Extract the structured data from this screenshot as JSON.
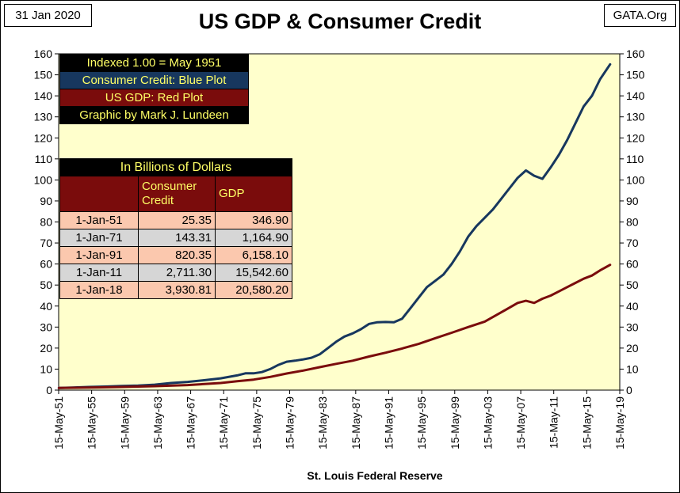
{
  "header": {
    "date_label": "31 Jan 2020",
    "source_label": "GATA.Org",
    "title": "US GDP & Consumer Credit"
  },
  "legend": {
    "lines": [
      {
        "text": "Indexed 1.00 = May 1951",
        "bg": "#000000"
      },
      {
        "text": "Consumer Credit: Blue Plot",
        "bg": "#17375e"
      },
      {
        "text": "US GDP: Red Plot",
        "bg": "#7a0c0c"
      },
      {
        "text": "Graphic by Mark J. Lundeen",
        "bg": "#000000"
      }
    ]
  },
  "table": {
    "caption": "In Billions of Dollars",
    "col_consumer_credit": "Consumer Credit",
    "col_gdp": "GDP",
    "rows": [
      {
        "date": "1-Jan-51",
        "consumer_credit": "25.35",
        "gdp": "346.90"
      },
      {
        "date": "1-Jan-71",
        "consumer_credit": "143.31",
        "gdp": "1,164.90"
      },
      {
        "date": "1-Jan-91",
        "consumer_credit": "820.35",
        "gdp": "6,158.10"
      },
      {
        "date": "1-Jan-11",
        "consumer_credit": "2,711.30",
        "gdp": "15,542.60"
      },
      {
        "date": "1-Jan-18",
        "consumer_credit": "3,930.81",
        "gdp": "20,580.20"
      }
    ]
  },
  "footer": {
    "source": "St. Louis Federal Reserve"
  },
  "colors": {
    "plot_background": "#ffffcc",
    "consumer_credit_line": "#17375e",
    "gdp_line": "#7a0c0c"
  },
  "chart_data": {
    "type": "line",
    "ylim": [
      0,
      160
    ],
    "y_ticks": [
      0,
      10,
      20,
      30,
      40,
      50,
      60,
      70,
      80,
      90,
      100,
      110,
      120,
      130,
      140,
      150,
      160
    ],
    "x_ticks": [
      "15-May-51",
      "15-May-55",
      "15-May-59",
      "15-May-63",
      "15-May-67",
      "15-May-71",
      "15-May-75",
      "15-May-79",
      "15-May-83",
      "15-May-87",
      "15-May-91",
      "15-May-95",
      "15-May-99",
      "15-May-03",
      "15-May-07",
      "15-May-11",
      "15-May-15",
      "15-May-19"
    ],
    "xlim": [
      1951.37,
      2019.37
    ],
    "grid": false,
    "series": [
      {
        "name": "Consumer Credit",
        "color": "#17375e",
        "points": [
          [
            1951.4,
            1.0
          ],
          [
            1953,
            1.2
          ],
          [
            1955,
            1.5
          ],
          [
            1957,
            1.7
          ],
          [
            1959,
            2.0
          ],
          [
            1961,
            2.2
          ],
          [
            1963,
            2.6
          ],
          [
            1965,
            3.4
          ],
          [
            1967,
            3.9
          ],
          [
            1969,
            4.7
          ],
          [
            1971,
            5.6
          ],
          [
            1973,
            7.0
          ],
          [
            1974,
            8.0
          ],
          [
            1975,
            8.0
          ],
          [
            1976,
            8.6
          ],
          [
            1977,
            10.0
          ],
          [
            1978,
            12.0
          ],
          [
            1979,
            13.5
          ],
          [
            1980,
            14.0
          ],
          [
            1981,
            14.6
          ],
          [
            1982,
            15.4
          ],
          [
            1983,
            17.0
          ],
          [
            1984,
            20.0
          ],
          [
            1985,
            23.0
          ],
          [
            1986,
            25.5
          ],
          [
            1987,
            27.0
          ],
          [
            1988,
            29.0
          ],
          [
            1989,
            31.5
          ],
          [
            1990,
            32.3
          ],
          [
            1991,
            32.4
          ],
          [
            1992,
            32.3
          ],
          [
            1993,
            34.0
          ],
          [
            1994,
            39.0
          ],
          [
            1995,
            44.0
          ],
          [
            1996,
            49.0
          ],
          [
            1997,
            52.0
          ],
          [
            1998,
            55.0
          ],
          [
            1999,
            60.0
          ],
          [
            2000,
            66.0
          ],
          [
            2001,
            73.0
          ],
          [
            2002,
            78.0
          ],
          [
            2003,
            82.0
          ],
          [
            2004,
            86.0
          ],
          [
            2005,
            91.0
          ],
          [
            2006,
            96.0
          ],
          [
            2007,
            101.0
          ],
          [
            2008,
            104.5
          ],
          [
            2009,
            102.0
          ],
          [
            2010,
            100.5
          ],
          [
            2011,
            106.0
          ],
          [
            2012,
            112.0
          ],
          [
            2013,
            119.0
          ],
          [
            2014,
            127.0
          ],
          [
            2015,
            135.0
          ],
          [
            2016,
            140.0
          ],
          [
            2017,
            148.0
          ],
          [
            2018.2,
            155.0
          ]
        ]
      },
      {
        "name": "US GDP",
        "color": "#7a0c0c",
        "points": [
          [
            1951.4,
            1.0
          ],
          [
            1955,
            1.2
          ],
          [
            1959,
            1.5
          ],
          [
            1963,
            1.9
          ],
          [
            1967,
            2.4
          ],
          [
            1971,
            3.4
          ],
          [
            1973,
            4.2
          ],
          [
            1975,
            5.0
          ],
          [
            1977,
            6.3
          ],
          [
            1979,
            7.9
          ],
          [
            1981,
            9.3
          ],
          [
            1983,
            10.9
          ],
          [
            1985,
            12.5
          ],
          [
            1987,
            14.0
          ],
          [
            1989,
            16.0
          ],
          [
            1991,
            17.8
          ],
          [
            1993,
            19.8
          ],
          [
            1995,
            22.0
          ],
          [
            1997,
            24.7
          ],
          [
            1999,
            27.3
          ],
          [
            2001,
            30.0
          ],
          [
            2003,
            32.6
          ],
          [
            2005,
            37.0
          ],
          [
            2007,
            41.5
          ],
          [
            2008,
            42.5
          ],
          [
            2009,
            41.5
          ],
          [
            2010,
            43.5
          ],
          [
            2011,
            45.0
          ],
          [
            2012,
            47.0
          ],
          [
            2013,
            49.0
          ],
          [
            2014,
            51.0
          ],
          [
            2015,
            53.0
          ],
          [
            2016,
            54.5
          ],
          [
            2017,
            57.0
          ],
          [
            2018.2,
            59.6
          ]
        ]
      }
    ]
  }
}
